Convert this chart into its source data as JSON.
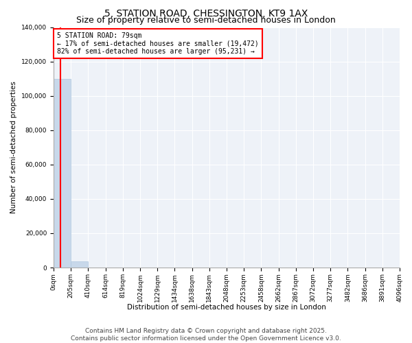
{
  "title": "5, STATION ROAD, CHESSINGTON, KT9 1AX",
  "subtitle": "Size of property relative to semi-detached houses in London",
  "xlabel": "Distribution of semi-detached houses by size in London",
  "ylabel": "Number of semi-detached properties",
  "annotation_title": "5 STATION ROAD: 79sqm",
  "annotation_line1": "← 17% of semi-detached houses are smaller (19,472)",
  "annotation_line2": "82% of semi-detached houses are larger (95,231) →",
  "footer_line1": "Contains HM Land Registry data © Crown copyright and database right 2025.",
  "footer_line2": "Contains public sector information licensed under the Open Government Licence v3.0.",
  "property_size_sqm": 79,
  "bar_color": "#c8d8ea",
  "bar_edge_color": "#b0c8e0",
  "marker_color": "red",
  "annotation_box_color": "red",
  "background_color": "#eef2f8",
  "ylim": [
    0,
    140000
  ],
  "yticks": [
    0,
    20000,
    40000,
    60000,
    80000,
    100000,
    120000,
    140000
  ],
  "bin_edges": [
    0,
    205,
    410,
    614,
    819,
    1024,
    1229,
    1434,
    1638,
    1843,
    2048,
    2253,
    2458,
    2662,
    2867,
    3072,
    3277,
    3482,
    3686,
    3891,
    4096
  ],
  "bin_labels": [
    "0sqm",
    "205sqm",
    "410sqm",
    "614sqm",
    "819sqm",
    "1024sqm",
    "1229sqm",
    "1434sqm",
    "1638sqm",
    "1843sqm",
    "2048sqm",
    "2253sqm",
    "2458sqm",
    "2662sqm",
    "2867sqm",
    "3072sqm",
    "3277sqm",
    "3482sqm",
    "3686sqm",
    "3891sqm",
    "4096sqm"
  ],
  "bar_heights": [
    110000,
    3500,
    200,
    100,
    80,
    60,
    50,
    40,
    30,
    25,
    20,
    18,
    15,
    12,
    10,
    8,
    7,
    6,
    5,
    4
  ],
  "title_fontsize": 10,
  "subtitle_fontsize": 9,
  "axis_fontsize": 7.5,
  "tick_fontsize": 6.5,
  "footer_fontsize": 6.5
}
